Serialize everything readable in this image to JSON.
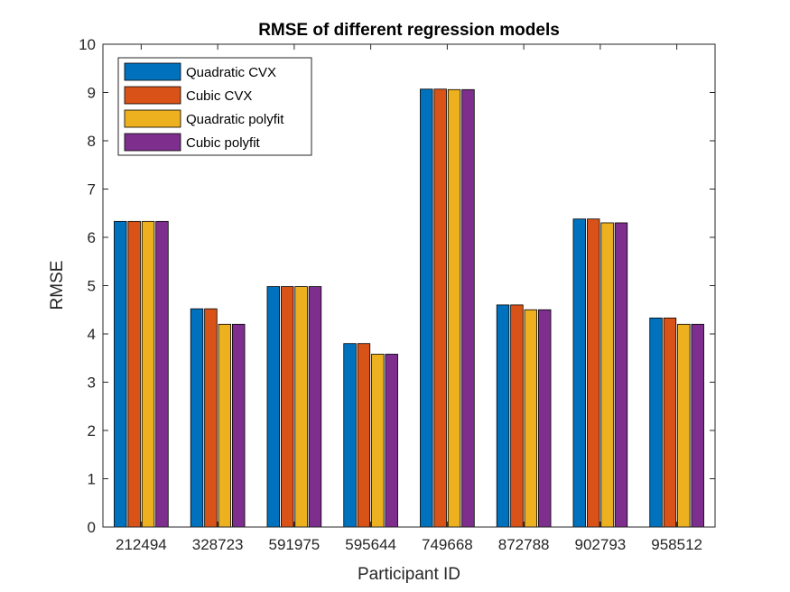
{
  "chart_data": {
    "type": "bar",
    "title": "RMSE of different regression models",
    "xlabel": "Participant ID",
    "ylabel": "RMSE",
    "categories": [
      "212494",
      "328723",
      "591975",
      "595644",
      "749668",
      "872788",
      "902793",
      "958512"
    ],
    "series": [
      {
        "name": "Quadratic CVX",
        "color": "#0072BD",
        "values": [
          6.33,
          4.52,
          4.98,
          3.8,
          9.07,
          4.6,
          6.38,
          4.33
        ]
      },
      {
        "name": "Cubic CVX",
        "color": "#D95319",
        "values": [
          6.33,
          4.52,
          4.98,
          3.8,
          9.07,
          4.6,
          6.38,
          4.33
        ]
      },
      {
        "name": "Quadratic polyfit",
        "color": "#EDB120",
        "values": [
          6.33,
          4.2,
          4.98,
          3.58,
          9.06,
          4.5,
          6.3,
          4.2
        ]
      },
      {
        "name": "Cubic polyfit",
        "color": "#7E2F8E",
        "values": [
          6.33,
          4.2,
          4.98,
          3.58,
          9.06,
          4.5,
          6.3,
          4.2
        ]
      }
    ],
    "ylim": [
      0,
      10
    ],
    "yticks": [
      0,
      1,
      2,
      3,
      4,
      5,
      6,
      7,
      8,
      9,
      10
    ],
    "grid": false,
    "legend_position": "top-left"
  }
}
